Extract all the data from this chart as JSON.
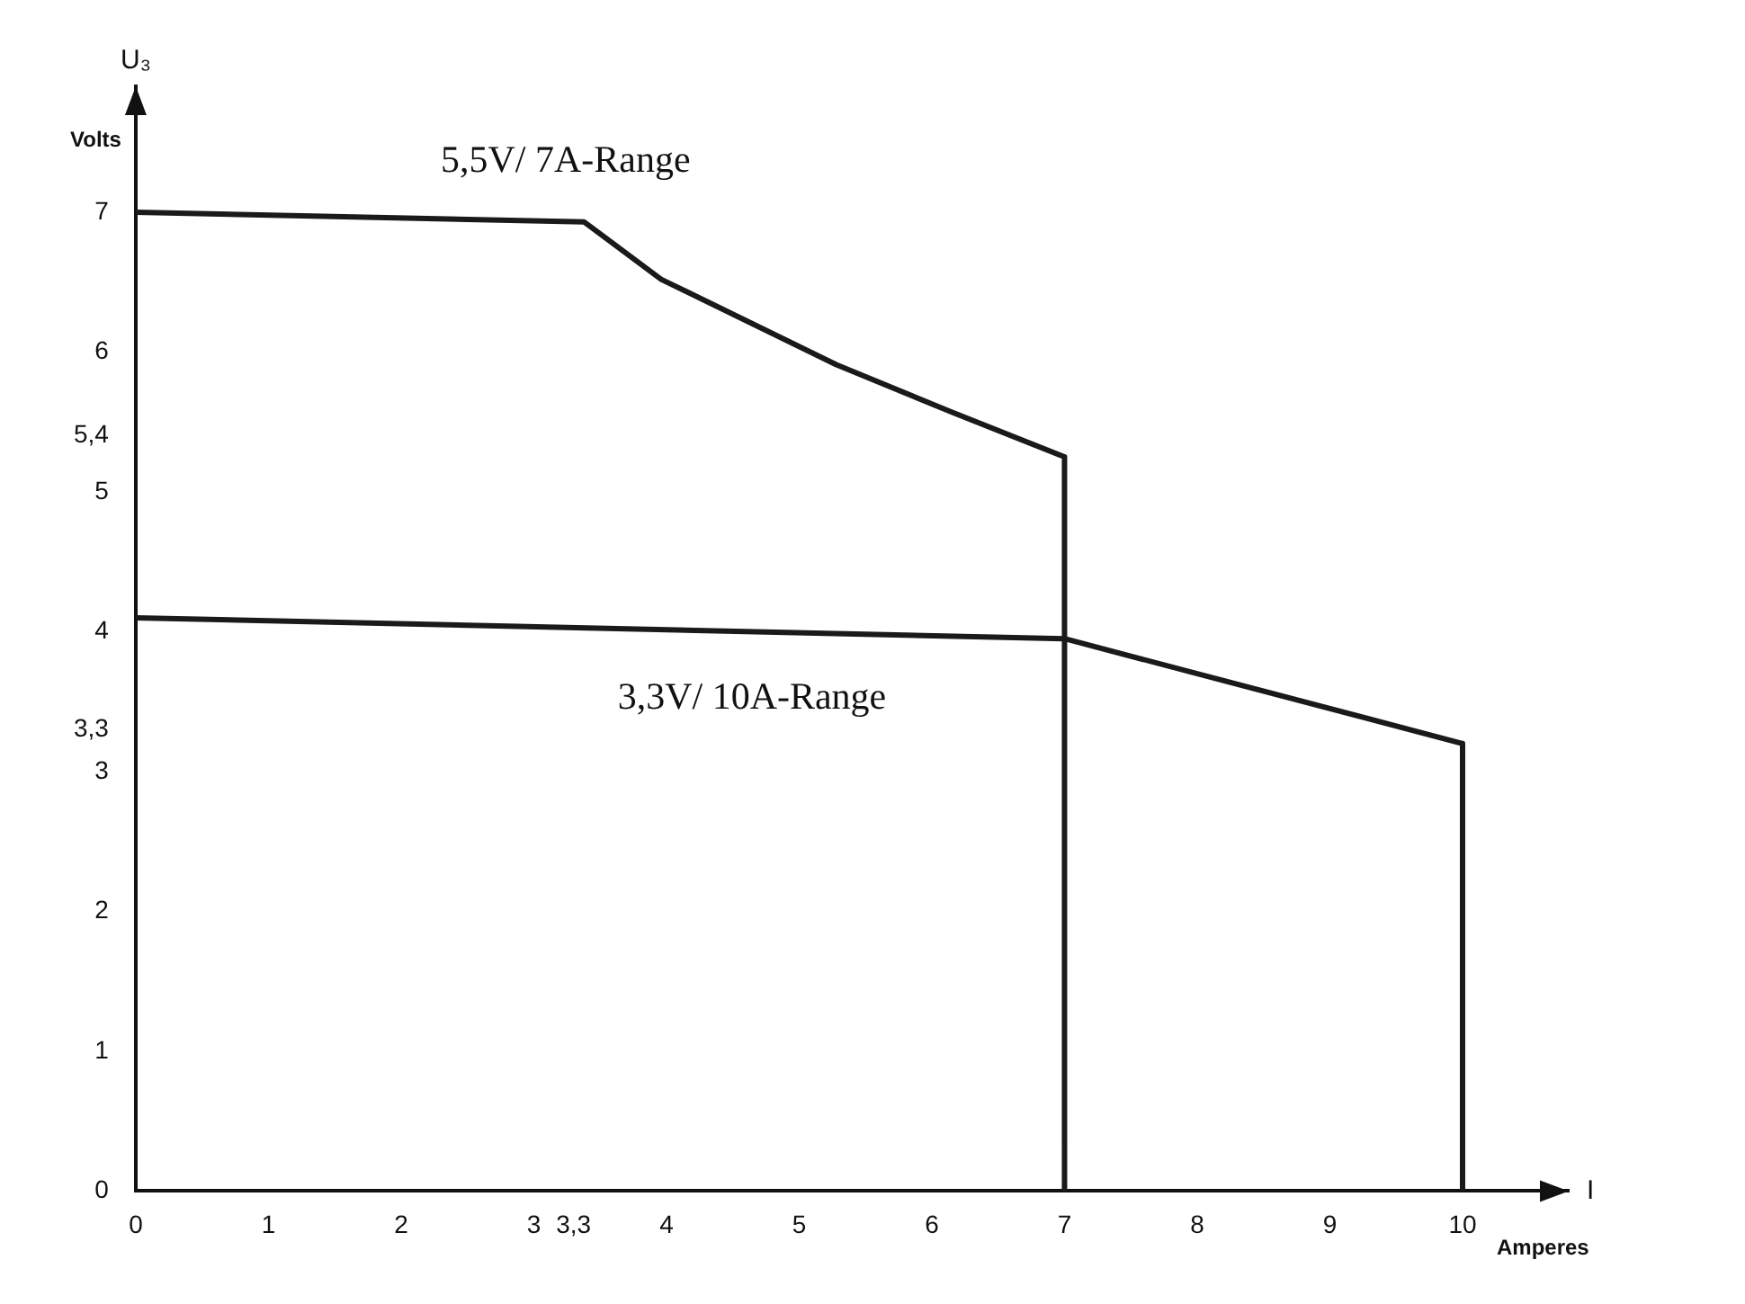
{
  "chart_data": {
    "type": "line",
    "ylabel": "U₃",
    "xlabel": "I",
    "annotations": [
      "Volts",
      "Amperes"
    ],
    "xlim": [
      0,
      10.8
    ],
    "ylim": [
      0,
      7.9
    ],
    "xticks": [
      0,
      1,
      2,
      3,
      {
        "value": 3.3,
        "label": "3,3"
      },
      4,
      5,
      6,
      7,
      8,
      9,
      10
    ],
    "yticks": [
      0,
      1,
      2,
      3,
      {
        "value": 3.3,
        "label": "3,3"
      },
      4,
      5,
      {
        "value": 5.4,
        "label": "5,4"
      },
      6,
      7
    ],
    "grid": false,
    "legend": false,
    "marker": "none",
    "line_style": "solid",
    "series": [
      {
        "name": "5,5V/ 7A-Range",
        "color": "#1a1a1a",
        "x": [
          0,
          3.38,
          3.96,
          5.28,
          6.15,
          7,
          7
        ],
        "values": [
          7,
          6.93,
          6.52,
          5.91,
          5.57,
          5.25,
          0
        ]
      },
      {
        "name": "3,3V/ 10A-Range",
        "color": "#1a1a1a",
        "x": [
          0,
          7,
          10,
          10
        ],
        "values": [
          4.1,
          3.95,
          3.2,
          0
        ]
      }
    ]
  }
}
